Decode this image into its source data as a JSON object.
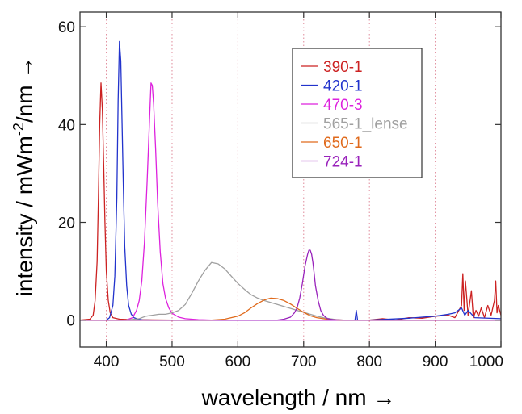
{
  "chart_data": {
    "type": "line",
    "title": "",
    "xlabel": "wavelength / nm →",
    "ylabel_main": "intensity / mWm",
    "ylabel_sup": "-2",
    "ylabel_tail": "/nm →",
    "xlim": [
      360,
      1000
    ],
    "ylim": [
      -5.5,
      63
    ],
    "xticks": [
      400,
      500,
      600,
      700,
      800,
      900,
      1000
    ],
    "yticks": [
      0,
      20,
      40,
      60
    ],
    "xgrid": [
      400,
      500,
      600,
      700,
      800,
      900
    ],
    "grid": "dotted vertical",
    "legend_position": "top-right",
    "series": [
      {
        "name": "390-1",
        "color": "#cc2222",
        "x": [
          360,
          375,
          380,
          383,
          386,
          388,
          390,
          392,
          394,
          396,
          398,
          400,
          403,
          406,
          410,
          420,
          440,
          500,
          600,
          700,
          800,
          820,
          840,
          860,
          880,
          900,
          920,
          930,
          940,
          942,
          944,
          946,
          950,
          955,
          958,
          962,
          966,
          970,
          975,
          980,
          985,
          990,
          992,
          994,
          996,
          1000
        ],
        "y": [
          0,
          0.2,
          1,
          4,
          12,
          25,
          40,
          48.5,
          43,
          32,
          20,
          10,
          4,
          1.5,
          0.5,
          0.2,
          0.1,
          0,
          0,
          0,
          0,
          0.3,
          0,
          0.5,
          0.4,
          0.8,
          1,
          0.5,
          3,
          9.5,
          2,
          8,
          1,
          6,
          0.5,
          2,
          0.8,
          2.5,
          0.5,
          3,
          1,
          4,
          8,
          1.5,
          3,
          1
        ]
      },
      {
        "name": "420-1",
        "color": "#2233cc",
        "x": [
          360,
          400,
          405,
          410,
          413,
          416,
          418,
          420,
          422,
          424,
          426,
          428,
          431,
          434,
          438,
          442,
          448,
          455,
          470,
          600,
          700,
          778,
          780,
          782,
          800,
          860,
          880,
          900,
          920,
          930,
          940,
          945,
          950,
          960,
          1000
        ],
        "y": [
          0,
          0,
          0.5,
          3,
          9,
          25,
          45,
          57,
          53,
          40,
          27,
          15,
          7,
          3,
          1.2,
          0.5,
          0.2,
          0.05,
          0,
          0,
          0,
          0,
          2,
          0,
          0,
          0.4,
          0.6,
          0.8,
          1.2,
          1.5,
          2.5,
          1,
          2,
          0.5,
          0.3
        ]
      },
      {
        "name": "470-3",
        "color": "#dd22dd",
        "x": [
          360,
          430,
          440,
          446,
          450,
          454,
          458,
          462,
          466,
          468,
          470,
          472,
          475,
          478,
          482,
          486,
          490,
          495,
          500,
          510,
          520,
          540,
          560,
          600,
          700,
          1000
        ],
        "y": [
          0,
          0,
          0.5,
          2,
          4,
          8,
          16,
          28,
          42,
          48.5,
          48,
          44,
          35,
          24,
          14,
          7.5,
          4.5,
          2.5,
          1.4,
          0.6,
          0.3,
          0.1,
          0,
          0,
          0,
          0
        ]
      },
      {
        "name": "565-1_lense",
        "color": "#a0a0a0",
        "x": [
          360,
          430,
          450,
          460,
          470,
          480,
          490,
          500,
          510,
          520,
          530,
          540,
          550,
          560,
          570,
          580,
          590,
          600,
          610,
          620,
          630,
          640,
          650,
          660,
          670,
          680,
          690,
          700,
          710,
          720,
          730,
          740,
          750,
          760,
          1000
        ],
        "y": [
          0,
          0,
          0.3,
          0.8,
          1,
          1.2,
          1.2,
          1.5,
          2,
          3.2,
          5.5,
          8,
          10.2,
          11.8,
          11.5,
          10.5,
          9,
          7.5,
          6.3,
          5.2,
          4.5,
          4,
          3.6,
          3.2,
          2.8,
          2.4,
          2,
          1.6,
          1.2,
          0.8,
          0.5,
          0.3,
          0.1,
          0,
          0
        ]
      },
      {
        "name": "650-1",
        "color": "#e06a1c",
        "x": [
          360,
          560,
          580,
          600,
          610,
          620,
          630,
          640,
          650,
          660,
          670,
          680,
          690,
          700,
          710,
          720,
          740,
          760,
          1000
        ],
        "y": [
          0,
          0,
          0.2,
          0.8,
          1.5,
          2.5,
          3.4,
          4.1,
          4.5,
          4.4,
          4,
          3.3,
          2.4,
          1.6,
          0.9,
          0.5,
          0.1,
          0,
          0
        ]
      },
      {
        "name": "724-1",
        "color": "#9922bb",
        "x": [
          360,
          660,
          670,
          680,
          686,
          690,
          694,
          698,
          702,
          706,
          708,
          710,
          712,
          714,
          716,
          718,
          722,
          726,
          730,
          736,
          745,
          760,
          1000
        ],
        "y": [
          0,
          0,
          0.2,
          0.6,
          1.5,
          2.5,
          4.5,
          7.5,
          11,
          13.5,
          14.3,
          14.3,
          13.5,
          11.8,
          9.5,
          7,
          4,
          2,
          1,
          0.3,
          0.1,
          0,
          0
        ]
      }
    ]
  }
}
